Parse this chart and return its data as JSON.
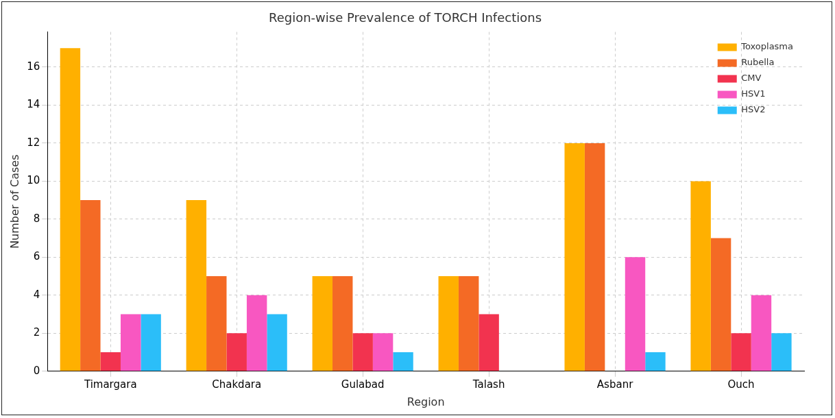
{
  "chart_data": {
    "type": "bar",
    "title": "Region-wise Prevalence of TORCH Infections",
    "xlabel": "Region",
    "ylabel": "Number of Cases",
    "categories": [
      "Timargara",
      "Chakdara",
      "Gulabad",
      "Talash",
      "Asbanr",
      "Ouch"
    ],
    "series": [
      {
        "name": "Toxoplasma",
        "color": "#ffb000",
        "values": [
          17,
          9,
          5,
          5,
          12,
          10
        ]
      },
      {
        "name": "Rubella",
        "color": "#f46a25",
        "values": [
          9,
          5,
          5,
          5,
          12,
          7
        ]
      },
      {
        "name": "CMV",
        "color": "#f2334f",
        "values": [
          1,
          2,
          2,
          3,
          0,
          2
        ]
      },
      {
        "name": "HSV1",
        "color": "#f857c1",
        "values": [
          3,
          4,
          2,
          0,
          6,
          4
        ]
      },
      {
        "name": "HSV2",
        "color": "#2bbef9",
        "values": [
          3,
          3,
          1,
          0,
          1,
          2
        ]
      }
    ],
    "ylim": [
      0,
      17.85
    ],
    "yticks": [
      0,
      2,
      4,
      6,
      8,
      10,
      12,
      14,
      16
    ],
    "grid": true,
    "legend": "top right"
  }
}
